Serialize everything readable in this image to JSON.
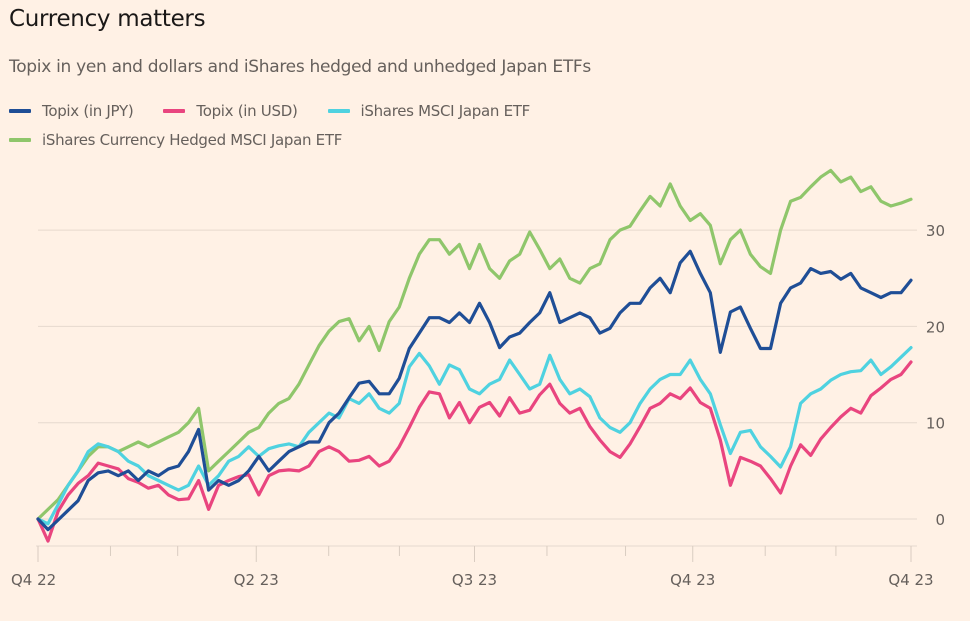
{
  "chart_data": {
    "type": "line",
    "title": "Currency matters",
    "subtitle": "Topix in yen and dollars and iShares hedged and unhedged Japan ETFs",
    "xlabel": "",
    "ylabel": "",
    "ylim": [
      -2.8,
      36
    ],
    "yticks": [
      0,
      10,
      20,
      30
    ],
    "ytick_labels": [
      "0",
      "10",
      "20",
      "30"
    ],
    "xtick_labels": [
      "Q4 22",
      "Q2 23",
      "Q3 23",
      "Q4 23",
      "Q4 23"
    ],
    "xtick_positions": [
      0,
      0.25,
      0.5,
      0.75,
      1.0
    ],
    "minor_tick_positions": [
      0.083,
      0.16,
      0.333,
      0.414,
      0.583,
      0.673,
      0.833,
      0.914
    ],
    "grid": true,
    "legend_position": "top-left",
    "series": [
      {
        "name": "Topix (in JPY)",
        "color": "#1f4e96",
        "values": [
          0,
          -1.1,
          -0.1,
          0.9,
          1.9,
          4,
          4.8,
          5,
          4.5,
          5,
          4,
          5,
          4.5,
          5.2,
          5.5,
          7,
          9.3,
          3,
          4,
          3.5,
          4,
          5,
          6.5,
          5,
          6,
          7,
          7.5,
          8,
          8,
          10,
          11,
          12.6,
          14.1,
          14.3,
          13,
          13,
          14.6,
          17.7,
          19.3,
          20.9,
          20.9,
          20.4,
          21.4,
          20.4,
          22.4,
          20.4,
          17.8,
          18.9,
          19.3,
          20.4,
          21.4,
          23.5,
          20.4,
          20.9,
          21.4,
          20.9,
          19.3,
          19.8,
          21.4,
          22.4,
          22.4,
          24,
          25,
          23.5,
          26.6,
          27.8,
          25.5,
          23.5,
          17.3,
          21.5,
          22,
          19.8,
          17.7,
          17.7,
          22.4,
          24,
          24.5,
          26,
          25.5,
          25.7,
          24.9,
          25.5,
          24,
          23.5,
          23,
          23.5,
          23.5,
          24.8
        ]
      },
      {
        "name": "Topix (in USD)",
        "color": "#e9457f",
        "values": [
          0,
          -2.3,
          0.8,
          2.5,
          3.7,
          4.5,
          5.8,
          5.5,
          5.2,
          4.2,
          3.8,
          3.2,
          3.5,
          2.5,
          2,
          2.1,
          4,
          1,
          3.5,
          4,
          4.4,
          4.6,
          2.5,
          4.5,
          5,
          5.1,
          5,
          5.5,
          7,
          7.5,
          7,
          6,
          6.1,
          6.5,
          5.5,
          6,
          7.5,
          9.5,
          11.6,
          13.2,
          13,
          10.5,
          12.1,
          10,
          11.6,
          12.1,
          10.7,
          12.6,
          11,
          11.3,
          12.9,
          14,
          12,
          11,
          11.5,
          9.6,
          8.2,
          7,
          6.4,
          7.8,
          9.6,
          11.5,
          12,
          13,
          12.5,
          13.6,
          12.1,
          11.5,
          8.2,
          3.5,
          6.4,
          6,
          5.5,
          4.2,
          2.7,
          5.5,
          7.7,
          6.6,
          8.3,
          9.5,
          10.6,
          11.5,
          11,
          12.8,
          13.6,
          14.5,
          15,
          16.3
        ]
      },
      {
        "name": "iShares MSCI Japan ETF",
        "color": "#4fd2e0",
        "values": [
          0,
          -0.5,
          1.5,
          3.5,
          5,
          7,
          7.8,
          7.5,
          7,
          6,
          5.5,
          4.5,
          4,
          3.5,
          3,
          3.5,
          5.5,
          3.5,
          4.5,
          6,
          6.5,
          7.5,
          6.5,
          7.3,
          7.6,
          7.8,
          7.5,
          9,
          10,
          11,
          10.5,
          12.5,
          12,
          13,
          11.5,
          11,
          12,
          15.8,
          17.2,
          15.9,
          14,
          16,
          15.5,
          13.5,
          13,
          14,
          14.5,
          16.5,
          15,
          13.5,
          14,
          17,
          14.5,
          13,
          13.5,
          12.7,
          10.5,
          9.5,
          9,
          10,
          12,
          13.5,
          14.5,
          15,
          15,
          16.5,
          14.5,
          13,
          9.8,
          6.8,
          9,
          9.2,
          7.5,
          6.5,
          5.4,
          7.5,
          12,
          13,
          13.5,
          14.4,
          15,
          15.3,
          15.4,
          16.5,
          15,
          15.8,
          16.8,
          17.8
        ]
      },
      {
        "name": "iShares Currency Hedged MSCI Japan ETF",
        "color": "#8fc66b",
        "values": [
          0,
          1,
          2,
          3.5,
          5,
          6.5,
          7.5,
          7.5,
          7,
          7.5,
          8,
          7.5,
          8,
          8.5,
          9,
          10,
          11.5,
          5,
          6,
          7,
          8,
          9,
          9.5,
          11,
          12,
          12.5,
          14,
          16,
          18,
          19.5,
          20.5,
          20.8,
          18.5,
          20,
          17.5,
          20.5,
          22,
          25,
          27.5,
          29,
          29,
          27.5,
          28.5,
          26,
          28.5,
          26,
          25,
          26.8,
          27.5,
          29.8,
          28,
          26,
          27,
          25,
          24.5,
          26,
          26.5,
          29,
          30,
          30.4,
          32,
          33.5,
          32.5,
          34.8,
          32.5,
          31,
          31.7,
          30.5,
          26.5,
          29,
          30,
          27.5,
          26.2,
          25.5,
          30,
          33,
          33.4,
          34.5,
          35.5,
          36.2,
          35,
          35.5,
          34,
          34.5,
          33,
          32.5,
          32.8,
          33.2
        ]
      }
    ]
  }
}
